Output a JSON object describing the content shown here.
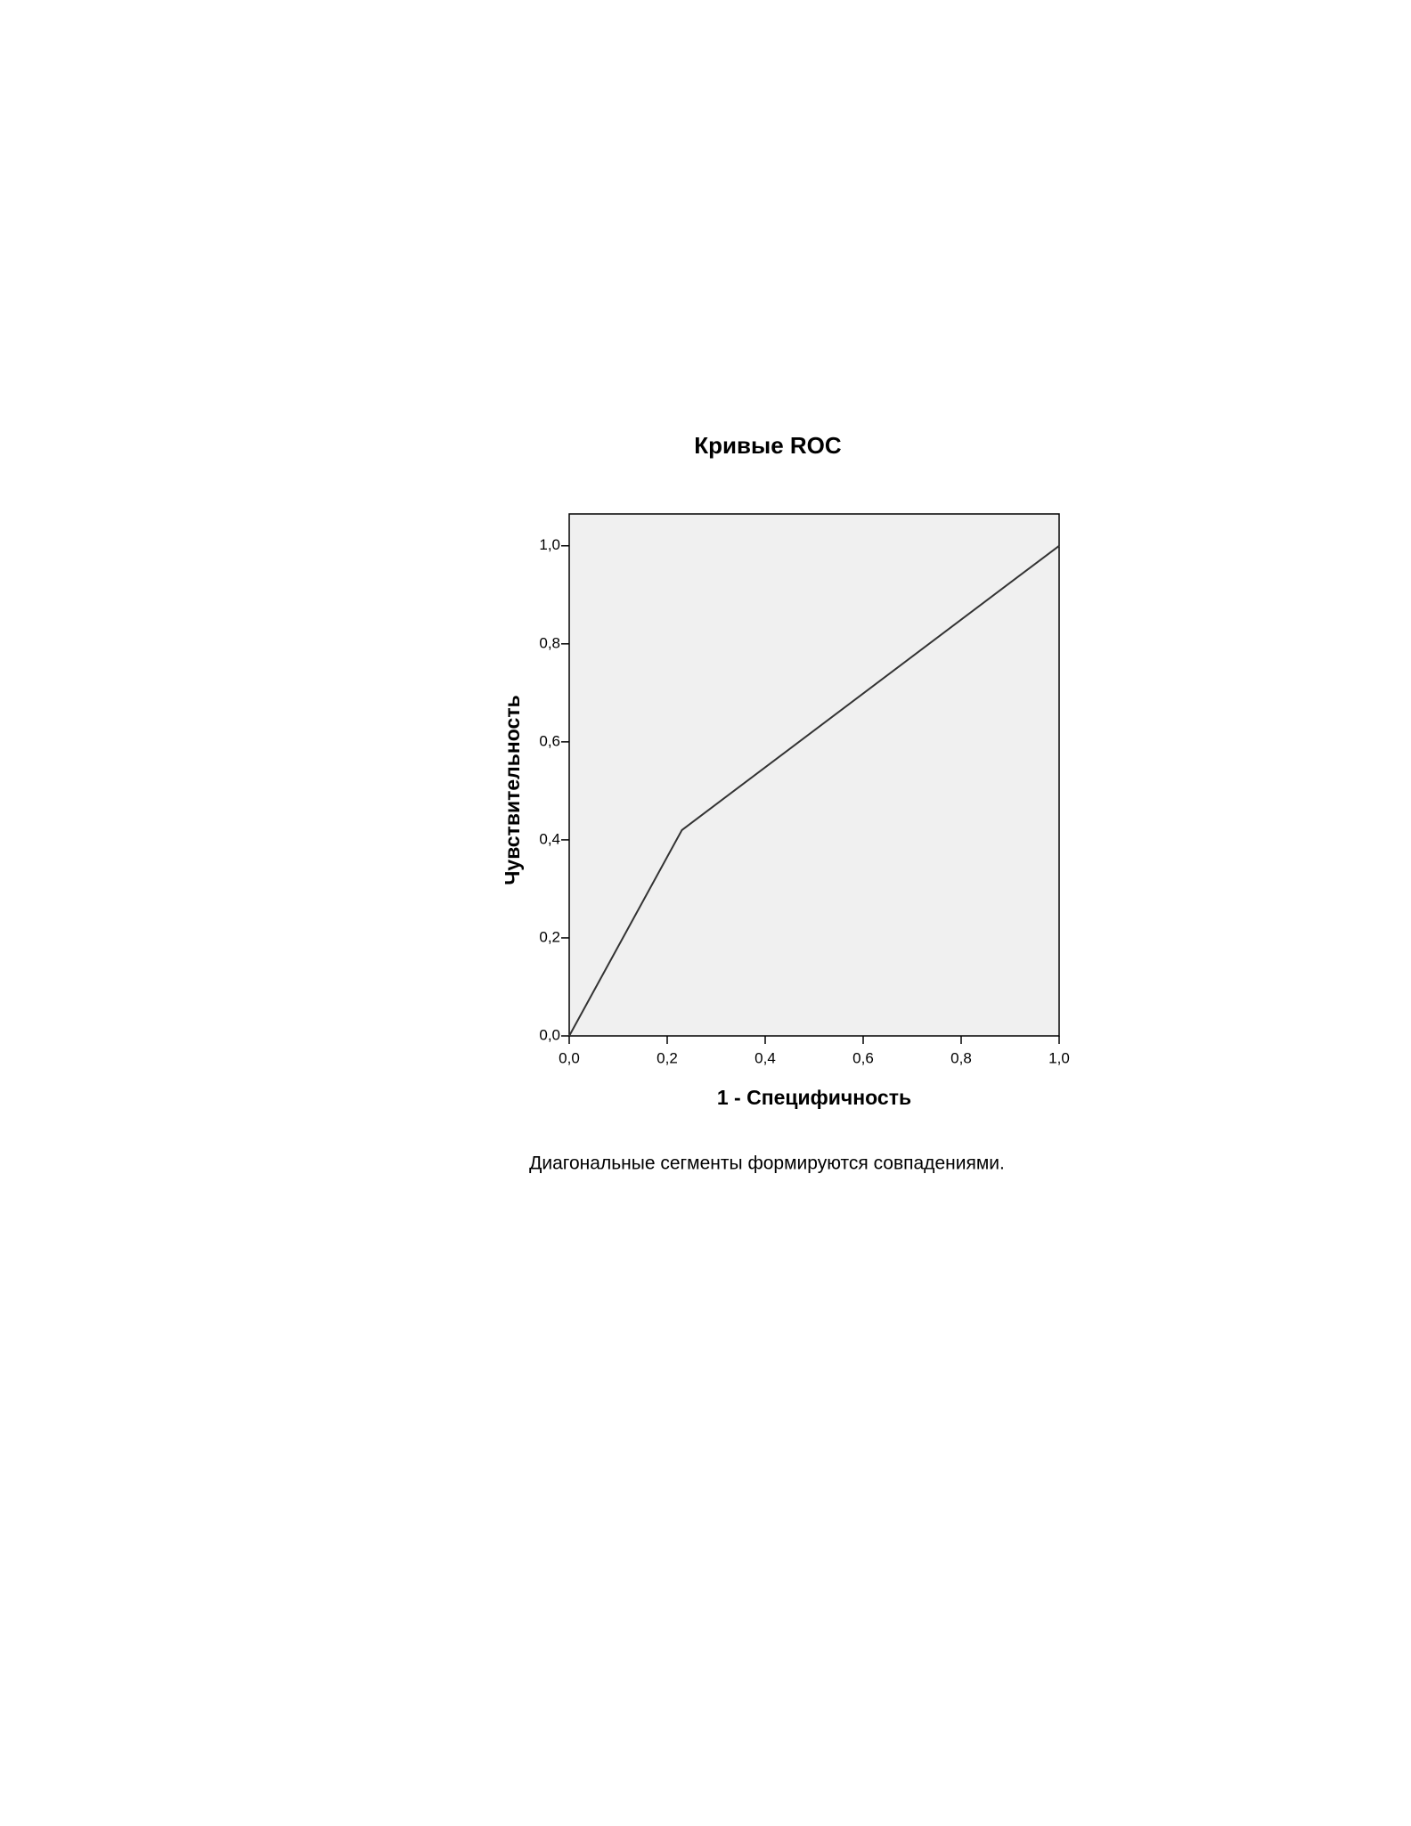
{
  "chart_data": {
    "type": "line",
    "title": "Кривые ROC",
    "x_label": "1 - Специфичность",
    "y_label": "Чувствительность",
    "footnote": "Диагональные сегменты формируются совпадениями.",
    "x": [
      0,
      0.23,
      1
    ],
    "series": [
      {
        "color": "#333333",
        "values": [
          0,
          0.42,
          1
        ]
      }
    ],
    "xlim": [
      0,
      1
    ],
    "ylim": [
      0,
      1.065
    ],
    "xticks": [
      {
        "value": 0,
        "label": "0,0"
      },
      {
        "value": 0.2,
        "label": "0,2"
      },
      {
        "value": 0.4,
        "label": "0,4"
      },
      {
        "value": 0.6,
        "label": "0,6"
      },
      {
        "value": 0.8,
        "label": "0,8"
      },
      {
        "value": 1,
        "label": "1,0"
      }
    ],
    "yticks": [
      {
        "value": 0,
        "label": "0,0"
      },
      {
        "value": 0.2,
        "label": "0,2"
      },
      {
        "value": 0.4,
        "label": "0,4"
      },
      {
        "value": 0.6,
        "label": "0,6"
      },
      {
        "value": 0.8,
        "label": "0,8"
      },
      {
        "value": 1,
        "label": "1,0"
      }
    ],
    "plot_background": "#f0f0f0",
    "grid": false
  }
}
